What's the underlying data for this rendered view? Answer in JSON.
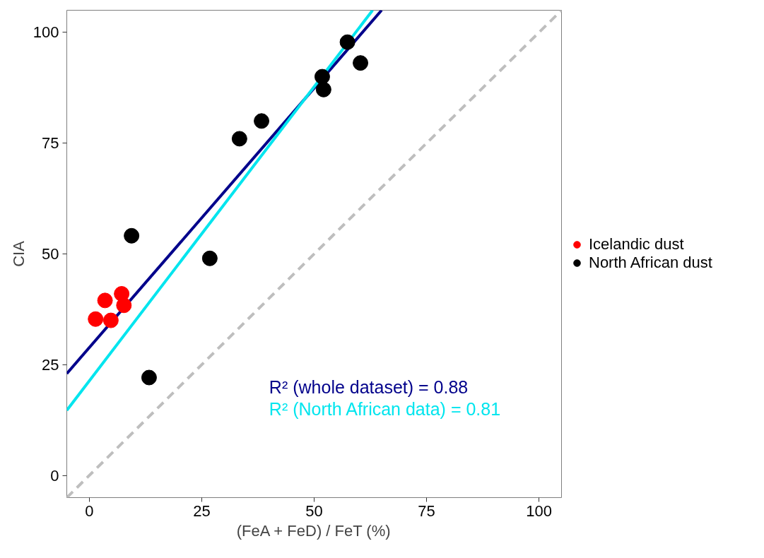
{
  "chart_data": {
    "type": "scatter",
    "xlabel": "(FeA + FeD) / FeT (%)",
    "ylabel": "CIA",
    "xlim": [
      -5,
      105
    ],
    "ylim": [
      -5,
      105
    ],
    "xticks": [
      0,
      25,
      50,
      75,
      100
    ],
    "yticks": [
      0,
      25,
      50,
      75,
      100
    ],
    "grid": false,
    "legend": "right",
    "marker": "circle",
    "series": [
      {
        "type": "line",
        "color": "#bebebe",
        "line_style": "dashed",
        "marker": "none",
        "x": [
          -5,
          105
        ],
        "values": [
          -5,
          105
        ]
      },
      {
        "type": "line",
        "color": "#00008b",
        "line_style": "solid",
        "marker": "none",
        "x": [
          -5,
          65
        ],
        "values": [
          23.0,
          105
        ]
      },
      {
        "type": "line",
        "color": "#00e5ee",
        "line_style": "solid",
        "marker": "none",
        "x": [
          -5,
          63
        ],
        "values": [
          14.7,
          105
        ]
      },
      {
        "name": "Icelandic dust",
        "color": "#ff0000",
        "x": [
          1.4,
          3.5,
          4.8,
          7.2,
          7.7
        ],
        "values": [
          35.3,
          39.5,
          35.0,
          41.0,
          38.4
        ]
      },
      {
        "name": "North African dust",
        "color": "#000000",
        "x": [
          9.4,
          13.3,
          26.8,
          33.4,
          38.3,
          51.8,
          52.1,
          57.4,
          60.3
        ],
        "values": [
          54.1,
          22.1,
          49.0,
          76.0,
          80.0,
          90.0,
          87.1,
          97.8,
          93.1
        ]
      }
    ],
    "annotations": [
      "R² (whole dataset) = 0.88",
      "R² (North African data) = 0.81"
    ]
  }
}
